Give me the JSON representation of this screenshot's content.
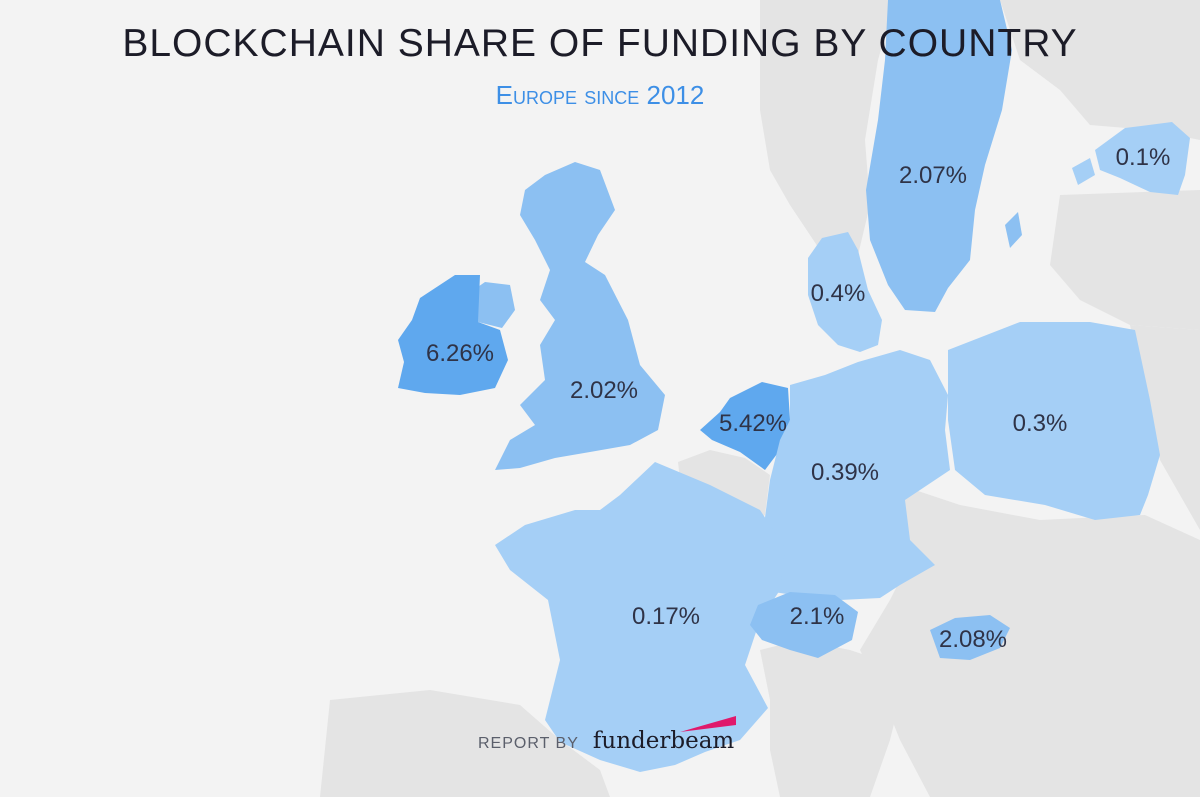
{
  "title": "BLOCKCHAIN SHARE OF FUNDING BY COUNTRY",
  "subtitle": "Europe since 2012",
  "footer": {
    "report_by": "REPORT BY",
    "brand": "funderbeam"
  },
  "colors": {
    "background": "#f3f3f3",
    "land_other": "#e4e4e4",
    "shade_light": "#a5cff6",
    "shade_mid": "#8cc0f2",
    "shade_dark": "#5fa8ee",
    "brand_accent": "#e0196b"
  },
  "regions": [
    {
      "country": "Ireland",
      "value": "6.26%"
    },
    {
      "country": "United Kingdom",
      "value": "2.02%"
    },
    {
      "country": "Netherlands",
      "value": "5.42%"
    },
    {
      "country": "Germany",
      "value": "0.39%"
    },
    {
      "country": "Denmark",
      "value": "0.4%"
    },
    {
      "country": "Sweden",
      "value": "2.07%"
    },
    {
      "country": "Estonia",
      "value": "0.1%"
    },
    {
      "country": "Poland",
      "value": "0.3%"
    },
    {
      "country": "France",
      "value": "0.17%"
    },
    {
      "country": "Switzerland",
      "value": "2.1%"
    },
    {
      "country": "Slovenia",
      "value": "2.08%"
    }
  ]
}
